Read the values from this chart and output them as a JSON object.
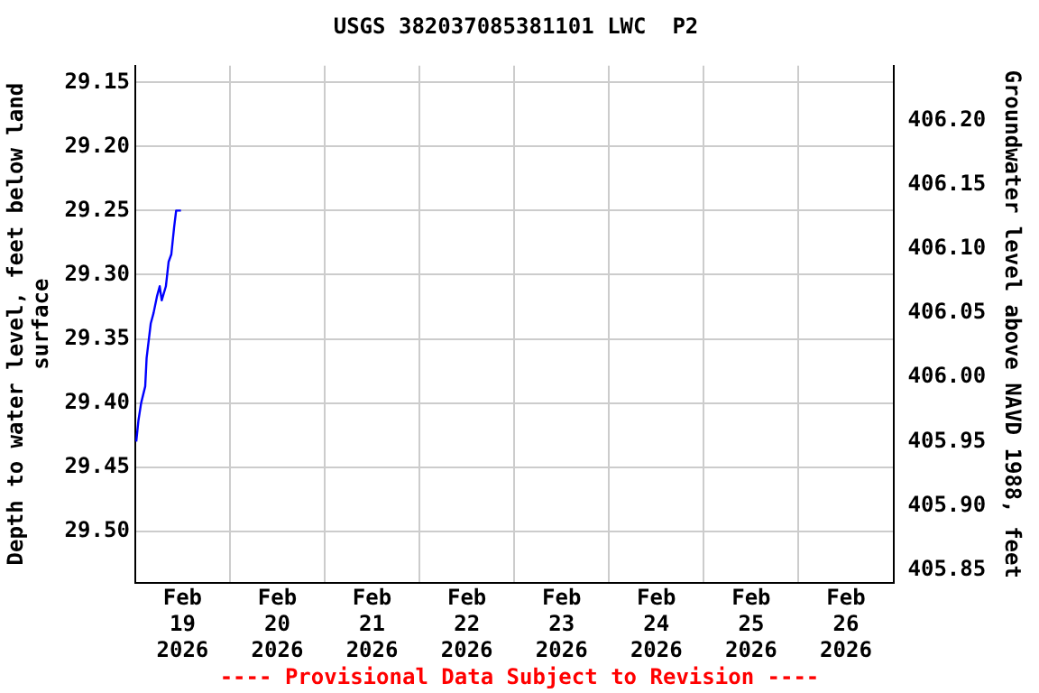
{
  "chart_data": {
    "type": "line",
    "title": "USGS 382037085381101 LWC  P2",
    "xlabel": null,
    "ylabel": "Depth to water level, feet below land surface",
    "y2label": "Groundwater level above NAVD 1988, feet",
    "x": [
      "2026-02-19T00:17",
      "2026-02-19T00:49",
      "2026-02-19T01:31",
      "2026-02-19T02:33",
      "2026-02-19T02:54",
      "2026-02-19T03:57",
      "2026-02-19T04:39",
      "2026-02-19T05:31",
      "2026-02-19T06:13",
      "2026-02-19T06:44",
      "2026-02-19T07:47",
      "2026-02-19T08:28",
      "2026-02-19T09:10",
      "2026-02-19T09:52",
      "2026-02-19T10:23",
      "2026-02-19T11:36"
    ],
    "series": [
      {
        "color": "#0000ff",
        "values": [
          29.43,
          29.414,
          29.4,
          29.387,
          29.365,
          29.338,
          29.33,
          29.317,
          29.309,
          29.32,
          29.309,
          29.29,
          29.284,
          29.263,
          29.25,
          29.25
        ]
      }
    ],
    "xlim": [
      "2026-02-19T00:00",
      "2026-02-27T00:00"
    ],
    "xticks": [
      {
        "value": "2026-02-19T00:00",
        "label": null
      },
      {
        "value": "2026-02-19T12:00",
        "label": "Feb 19 2026"
      },
      {
        "value": "2026-02-20T00:00",
        "label": null
      },
      {
        "value": "2026-02-20T12:00",
        "label": "Feb 20 2026"
      },
      {
        "value": "2026-02-21T00:00",
        "label": null
      },
      {
        "value": "2026-02-21T12:00",
        "label": "Feb 21 2026"
      },
      {
        "value": "2026-02-22T00:00",
        "label": null
      },
      {
        "value": "2026-02-22T12:00",
        "label": "Feb 22 2026"
      },
      {
        "value": "2026-02-23T00:00",
        "label": null
      },
      {
        "value": "2026-02-23T12:00",
        "label": "Feb 23 2026"
      },
      {
        "value": "2026-02-24T00:00",
        "label": null
      },
      {
        "value": "2026-02-24T12:00",
        "label": "Feb 24 2026"
      },
      {
        "value": "2026-02-25T00:00",
        "label": null
      },
      {
        "value": "2026-02-25T12:00",
        "label": "Feb 25 2026"
      },
      {
        "value": "2026-02-26T00:00",
        "label": null
      },
      {
        "value": "2026-02-26T12:00",
        "label": "Feb 26 2026"
      },
      {
        "value": "2026-02-27T00:00",
        "label": null
      }
    ],
    "ylim": [
      29.54,
      29.137
    ],
    "yticks": [
      {
        "value": 29.15,
        "label": "29.15"
      },
      {
        "value": 29.2,
        "label": "29.20"
      },
      {
        "value": 29.25,
        "label": "29.25"
      },
      {
        "value": 29.3,
        "label": "29.30"
      },
      {
        "value": 29.35,
        "label": "29.35"
      },
      {
        "value": 29.4,
        "label": "29.40"
      },
      {
        "value": 29.45,
        "label": "29.45"
      },
      {
        "value": 29.5,
        "label": "29.50"
      }
    ],
    "y2lim": [
      405.84,
      406.243
    ],
    "y2ticks": [
      {
        "value": 405.85,
        "label": "405.85"
      },
      {
        "value": 405.9,
        "label": "405.90"
      },
      {
        "value": 405.95,
        "label": "405.95"
      },
      {
        "value": 406.0,
        "label": "406.00"
      },
      {
        "value": 406.05,
        "label": "406.05"
      },
      {
        "value": 406.1,
        "label": "406.10"
      },
      {
        "value": 406.15,
        "label": "406.15"
      },
      {
        "value": 406.2,
        "label": "406.20"
      }
    ],
    "annotations": [
      "---- Provisional Data Subject to Revision ----"
    ],
    "grid": true,
    "legend": false,
    "marker": "none",
    "line_style": "solid"
  }
}
